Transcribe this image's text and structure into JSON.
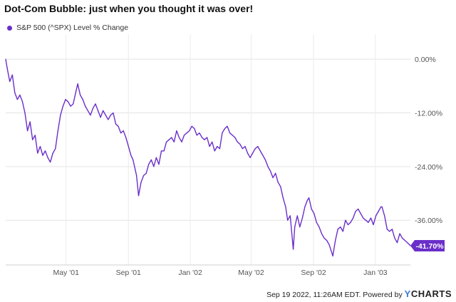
{
  "chart_data": {
    "type": "line",
    "title": "Dot-Com Bubble: just when you thought it was over!",
    "series": [
      {
        "name": "S&P 500 (^SPX) Level % Change",
        "color": "#6a2fc9",
        "points": [
          [
            "2001-01-02",
            0.0
          ],
          [
            "2001-01-05",
            -2.0
          ],
          [
            "2001-01-10",
            -5.0
          ],
          [
            "2001-01-15",
            -3.5
          ],
          [
            "2001-01-20",
            -7.5
          ],
          [
            "2001-01-25",
            -9.0
          ],
          [
            "2001-01-30",
            -8.0
          ],
          [
            "2001-02-04",
            -9.5
          ],
          [
            "2001-02-09",
            -12.0
          ],
          [
            "2001-02-14",
            -16.0
          ],
          [
            "2001-02-19",
            -14.0
          ],
          [
            "2001-02-24",
            -18.0
          ],
          [
            "2001-03-01",
            -17.0
          ],
          [
            "2001-03-06",
            -21.0
          ],
          [
            "2001-03-11",
            -19.5
          ],
          [
            "2001-03-16",
            -21.5
          ],
          [
            "2001-03-21",
            -20.5
          ],
          [
            "2001-03-26",
            -22.0
          ],
          [
            "2001-03-31",
            -23.0
          ],
          [
            "2001-04-05",
            -21.0
          ],
          [
            "2001-04-10",
            -20.0
          ],
          [
            "2001-04-15",
            -16.0
          ],
          [
            "2001-04-20",
            -12.5
          ],
          [
            "2001-04-25",
            -10.5
          ],
          [
            "2001-04-30",
            -9.0
          ],
          [
            "2001-05-05",
            -9.5
          ],
          [
            "2001-05-10",
            -10.5
          ],
          [
            "2001-05-15",
            -10.0
          ],
          [
            "2001-05-20",
            -7.5
          ],
          [
            "2001-05-24",
            -5.5
          ],
          [
            "2001-05-29",
            -8.0
          ],
          [
            "2001-06-03",
            -9.0
          ],
          [
            "2001-06-08",
            -10.5
          ],
          [
            "2001-06-13",
            -11.5
          ],
          [
            "2001-06-18",
            -12.5
          ],
          [
            "2001-06-23",
            -11.0
          ],
          [
            "2001-06-28",
            -10.0
          ],
          [
            "2001-07-03",
            -11.5
          ],
          [
            "2001-07-08",
            -13.0
          ],
          [
            "2001-07-13",
            -11.5
          ],
          [
            "2001-07-18",
            -12.5
          ],
          [
            "2001-07-23",
            -13.5
          ],
          [
            "2001-07-28",
            -12.5
          ],
          [
            "2001-08-02",
            -12.0
          ],
          [
            "2001-08-07",
            -14.5
          ],
          [
            "2001-08-12",
            -15.0
          ],
          [
            "2001-08-17",
            -16.5
          ],
          [
            "2001-08-22",
            -16.0
          ],
          [
            "2001-08-27",
            -17.5
          ],
          [
            "2001-09-01",
            -19.5
          ],
          [
            "2001-09-06",
            -21.5
          ],
          [
            "2001-09-10",
            -22.5
          ],
          [
            "2001-09-17",
            -26.0
          ],
          [
            "2001-09-21",
            -30.5
          ],
          [
            "2001-09-26",
            -27.5
          ],
          [
            "2001-10-01",
            -26.0
          ],
          [
            "2001-10-06",
            -25.5
          ],
          [
            "2001-10-11",
            -23.5
          ],
          [
            "2001-10-16",
            -22.5
          ],
          [
            "2001-10-21",
            -24.0
          ],
          [
            "2001-10-26",
            -22.0
          ],
          [
            "2001-10-31",
            -23.5
          ],
          [
            "2001-11-05",
            -20.5
          ],
          [
            "2001-11-10",
            -20.5
          ],
          [
            "2001-11-15",
            -18.5
          ],
          [
            "2001-11-20",
            -18.0
          ],
          [
            "2001-11-25",
            -17.5
          ],
          [
            "2001-11-30",
            -18.5
          ],
          [
            "2001-12-05",
            -16.0
          ],
          [
            "2001-12-10",
            -17.5
          ],
          [
            "2001-12-15",
            -18.5
          ],
          [
            "2001-12-20",
            -17.0
          ],
          [
            "2001-12-25",
            -16.5
          ],
          [
            "2001-12-30",
            -16.0
          ],
          [
            "2002-01-04",
            -15.0
          ],
          [
            "2002-01-09",
            -15.5
          ],
          [
            "2002-01-14",
            -17.0
          ],
          [
            "2002-01-19",
            -16.5
          ],
          [
            "2002-01-24",
            -17.5
          ],
          [
            "2002-01-29",
            -18.0
          ],
          [
            "2002-02-03",
            -17.5
          ],
          [
            "2002-02-08",
            -19.5
          ],
          [
            "2002-02-13",
            -18.5
          ],
          [
            "2002-02-18",
            -20.5
          ],
          [
            "2002-02-23",
            -19.5
          ],
          [
            "2002-02-28",
            -20.0
          ],
          [
            "2002-03-05",
            -16.5
          ],
          [
            "2002-03-10",
            -15.5
          ],
          [
            "2002-03-15",
            -15.0
          ],
          [
            "2002-03-20",
            -16.5
          ],
          [
            "2002-03-25",
            -17.0
          ],
          [
            "2002-03-30",
            -17.5
          ],
          [
            "2002-04-04",
            -18.5
          ],
          [
            "2002-04-09",
            -19.0
          ],
          [
            "2002-04-14",
            -20.0
          ],
          [
            "2002-04-19",
            -19.5
          ],
          [
            "2002-04-24",
            -21.0
          ],
          [
            "2002-04-29",
            -22.0
          ],
          [
            "2002-05-04",
            -21.0
          ],
          [
            "2002-05-09",
            -20.0
          ],
          [
            "2002-05-14",
            -19.5
          ],
          [
            "2002-05-19",
            -20.5
          ],
          [
            "2002-05-24",
            -21.5
          ],
          [
            "2002-05-29",
            -22.5
          ],
          [
            "2002-06-03",
            -24.0
          ],
          [
            "2002-06-08",
            -25.0
          ],
          [
            "2002-06-13",
            -26.5
          ],
          [
            "2002-06-18",
            -25.5
          ],
          [
            "2002-06-23",
            -27.5
          ],
          [
            "2002-06-28",
            -28.5
          ],
          [
            "2002-07-03",
            -31.0
          ],
          [
            "2002-07-08",
            -33.0
          ],
          [
            "2002-07-12",
            -36.0
          ],
          [
            "2002-07-17",
            -35.0
          ],
          [
            "2002-07-23",
            -42.5
          ],
          [
            "2002-07-26",
            -37.5
          ],
          [
            "2002-07-31",
            -35.0
          ],
          [
            "2002-08-05",
            -37.5
          ],
          [
            "2002-08-10",
            -35.5
          ],
          [
            "2002-08-15",
            -33.0
          ],
          [
            "2002-08-20",
            -31.5
          ],
          [
            "2002-08-23",
            -31.0
          ],
          [
            "2002-08-28",
            -33.5
          ],
          [
            "2002-09-02",
            -34.5
          ],
          [
            "2002-09-07",
            -36.5
          ],
          [
            "2002-09-12",
            -37.5
          ],
          [
            "2002-09-17",
            -39.0
          ],
          [
            "2002-09-22",
            -40.0
          ],
          [
            "2002-09-27",
            -40.5
          ],
          [
            "2002-10-02",
            -41.5
          ],
          [
            "2002-10-09",
            -44.0
          ],
          [
            "2002-10-14",
            -40.5
          ],
          [
            "2002-10-19",
            -38.0
          ],
          [
            "2002-10-24",
            -37.5
          ],
          [
            "2002-10-29",
            -38.5
          ],
          [
            "2002-11-03",
            -36.0
          ],
          [
            "2002-11-08",
            -37.0
          ],
          [
            "2002-11-13",
            -36.5
          ],
          [
            "2002-11-18",
            -35.5
          ],
          [
            "2002-11-23",
            -34.0
          ],
          [
            "2002-11-28",
            -33.5
          ],
          [
            "2002-12-03",
            -34.5
          ],
          [
            "2002-12-08",
            -35.5
          ],
          [
            "2002-12-13",
            -36.0
          ],
          [
            "2002-12-18",
            -36.5
          ],
          [
            "2002-12-23",
            -35.5
          ],
          [
            "2002-12-28",
            -37.0
          ],
          [
            "2003-01-02",
            -35.0
          ],
          [
            "2003-01-07",
            -34.0
          ],
          [
            "2003-01-12",
            -33.0
          ],
          [
            "2003-01-14",
            -33.0
          ],
          [
            "2003-01-19",
            -35.0
          ],
          [
            "2003-01-24",
            -38.0
          ],
          [
            "2003-01-29",
            -38.5
          ],
          [
            "2003-02-03",
            -38.0
          ],
          [
            "2003-02-08",
            -40.0
          ],
          [
            "2003-02-13",
            -41.0
          ],
          [
            "2003-02-18",
            -39.0
          ],
          [
            "2003-02-23",
            -40.0
          ],
          [
            "2003-02-28",
            -40.5
          ],
          [
            "2003-03-05",
            -41.0
          ],
          [
            "2003-03-11",
            -41.7
          ]
        ]
      }
    ],
    "xlabels": [
      {
        "date": "2001-05-01",
        "label": "May '01"
      },
      {
        "date": "2001-09-01",
        "label": "Sep '01"
      },
      {
        "date": "2002-01-01",
        "label": "Jan '02"
      },
      {
        "date": "2002-05-01",
        "label": "May '02"
      },
      {
        "date": "2002-09-01",
        "label": "Sep '02"
      },
      {
        "date": "2003-01-01",
        "label": "Jan '03"
      }
    ],
    "xlim": [
      "2001-01-02",
      "2003-03-11"
    ],
    "yticks": [
      {
        "value": 0,
        "label": "0.00%"
      },
      {
        "value": -12,
        "label": "-12.00%"
      },
      {
        "value": -24,
        "label": "-24.00%"
      },
      {
        "value": -36,
        "label": "-36.00%"
      }
    ],
    "ylim": [
      -46,
      4
    ],
    "last_value_label": "-41.70%",
    "grid": true
  },
  "footer": {
    "timestamp": "Sep 19 2022, 11:26AM EDT.  Powered by ",
    "brand_y": "Y",
    "brand_rest": "CHARTS"
  }
}
